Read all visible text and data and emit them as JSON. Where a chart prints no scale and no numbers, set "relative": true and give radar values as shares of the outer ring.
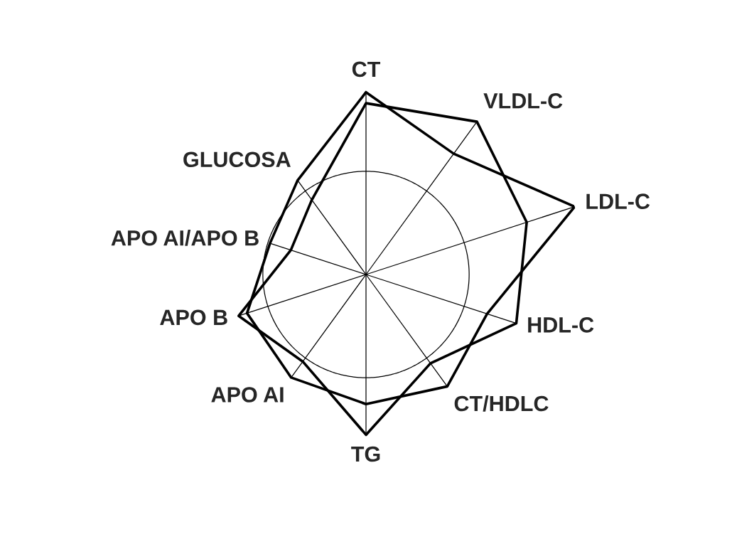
{
  "chart_data": {
    "type": "radar",
    "relative": true,
    "grid": true,
    "categories": [
      "CT",
      "VLDL-C",
      "LDL-C",
      "HDL-C",
      "CT/HDLC",
      "TG",
      "APO AI",
      "APO B",
      "APO AI/APO B",
      "GLUCOSA"
    ],
    "series": [
      {
        "color": "#000000",
        "values": [
          0.83,
          0.68,
          1,
          0.58,
          0.63,
          0.59,
          0.58,
          0.57,
          0.46,
          0.53
        ]
      },
      {
        "color": "#000000",
        "values": [
          0.78,
          0.86,
          0.77,
          0.72,
          0.5,
          0.73,
          0.49,
          0.61,
          0.36,
          0.42
        ]
      }
    ]
  }
}
